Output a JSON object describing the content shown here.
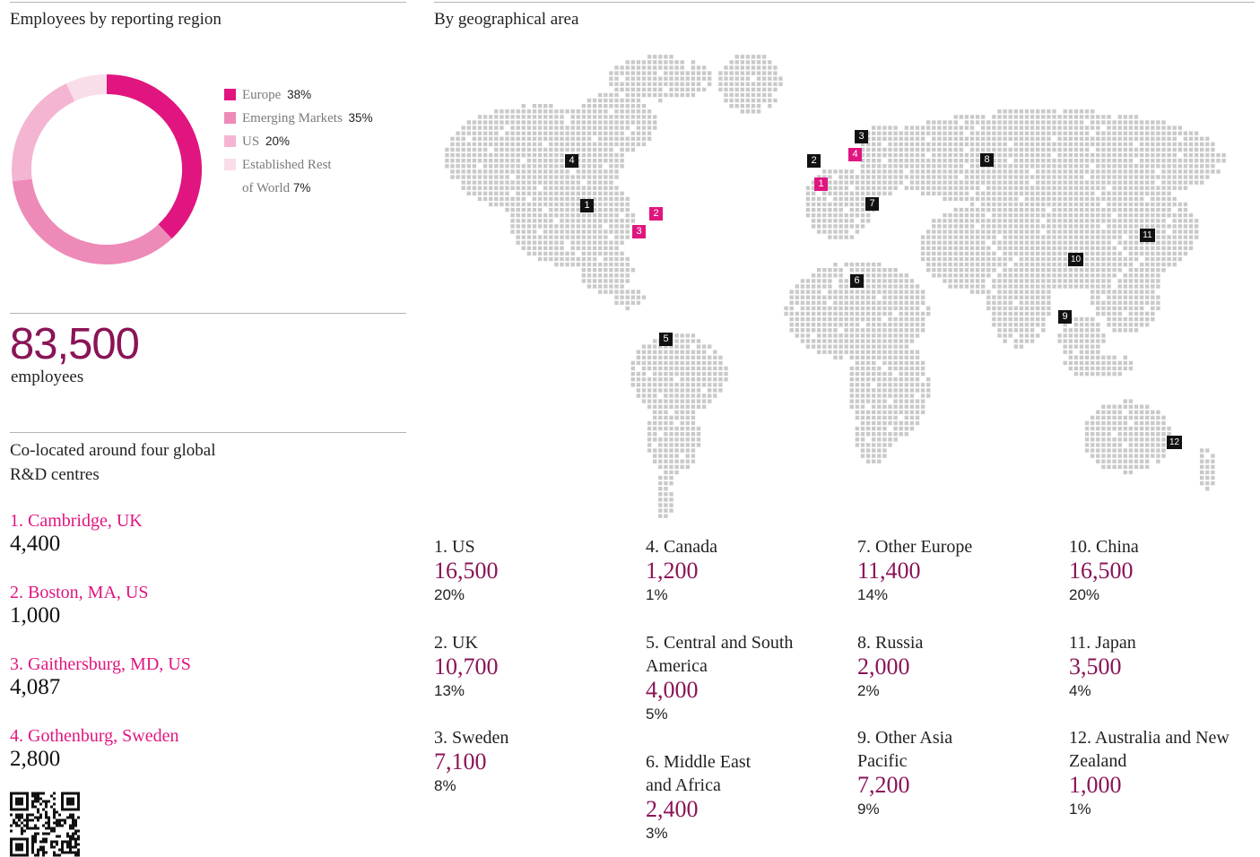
{
  "left_title": "Employees by reporting region",
  "right_title": "By geographical area",
  "chart_data": {
    "type": "pie",
    "categories": [
      "Europe",
      "Emerging Markets",
      "US",
      "Established Rest of World"
    ],
    "values": [
      38,
      35,
      20,
      7
    ],
    "unit": "%",
    "colors": [
      "#e0157f",
      "#ee8ab8",
      "#f4b5d2",
      "#f9dde9"
    ],
    "legend": "right"
  },
  "legend": [
    {
      "label": "Europe",
      "pct": "38%"
    },
    {
      "label": "Emerging Markets",
      "pct": "35%"
    },
    {
      "label": "US",
      "pct": "20%"
    },
    {
      "label": "Established Rest",
      "label2": "of World",
      "pct": "7%"
    }
  ],
  "total": {
    "value": "83,500",
    "label": "employees"
  },
  "rd": {
    "title": "Co-located around four global R&D centres",
    "centres": [
      {
        "name": "1. Cambridge, UK",
        "value": "4,400"
      },
      {
        "name": "2. Boston, MA, US",
        "value": "1,000"
      },
      {
        "name": "3. Gaithersburg, MD, US",
        "value": "4,087"
      },
      {
        "name": "4. Gothenburg, Sweden",
        "value": "2,800"
      }
    ]
  },
  "map": {
    "dark_markers": [
      "1",
      "2",
      "3",
      "4",
      "5",
      "6",
      "7",
      "8",
      "9",
      "10",
      "11",
      "12"
    ],
    "pink_markers": [
      "1",
      "2",
      "3",
      "4"
    ]
  },
  "areas": [
    {
      "name": "1. US",
      "value": "16,500",
      "pct": "20%"
    },
    {
      "name": "2. UK",
      "value": "10,700",
      "pct": "13%"
    },
    {
      "name": "3. Sweden",
      "value": "7,100",
      "pct": "8%"
    },
    {
      "name": "4. Canada",
      "value": "1,200",
      "pct": "1%"
    },
    {
      "name": "5. Central and South America",
      "value": "4,000",
      "pct": "5%"
    },
    {
      "name": "6. Middle East and Africa",
      "value": "2,400",
      "pct": "3%"
    },
    {
      "name": "7. Other Europe",
      "value": "11,400",
      "pct": "14%"
    },
    {
      "name": "8. Russia",
      "value": "2,000",
      "pct": "2%"
    },
    {
      "name": "9. Other Asia Pacific",
      "value": "7,200",
      "pct": "9%"
    },
    {
      "name": "10. China",
      "value": "16,500",
      "pct": "20%"
    },
    {
      "name": "11. Japan",
      "value": "3,500",
      "pct": "4%"
    },
    {
      "name": "12. Australia and New Zealand",
      "value": "1,000",
      "pct": "1%"
    }
  ]
}
